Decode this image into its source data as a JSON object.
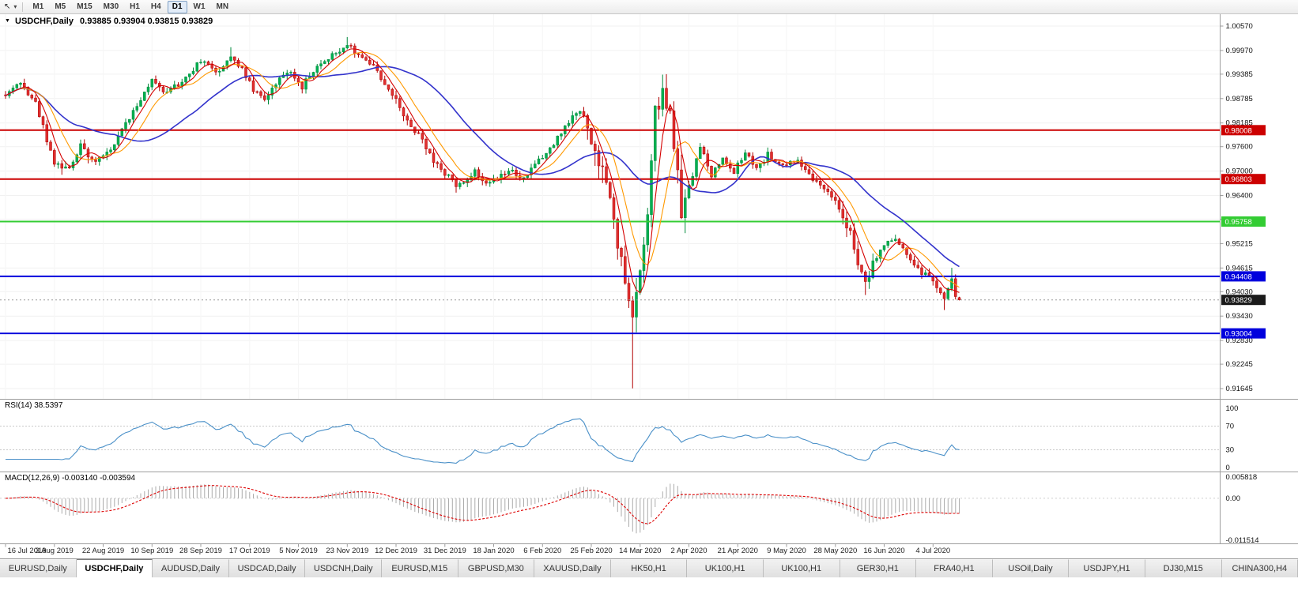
{
  "toolbar": {
    "cursor_icon": "↖",
    "caret_icon": "▾",
    "timeframes": [
      "M1",
      "M5",
      "M15",
      "M30",
      "H1",
      "H4",
      "D1",
      "W1",
      "MN"
    ],
    "active_timeframe": "D1"
  },
  "chart": {
    "marker": "▼",
    "title": "USDCHF,Daily",
    "ohlc_text": "0.93885 0.93904 0.93815 0.93829",
    "rsi_label": "RSI(14) 38.5397",
    "macd_label": "MACD(12,26,9) -0.003140 -0.003594"
  },
  "axes": {
    "price_ticks": [
      "1.00570",
      "0.99970",
      "0.99385",
      "0.98785",
      "0.98185",
      "0.97600",
      "0.97000",
      "0.96400",
      "0.95815",
      "0.95215",
      "0.94615",
      "0.94030",
      "0.93430",
      "0.92830",
      "0.92245",
      "0.91645"
    ],
    "rsi_ticks": [
      "100",
      "70",
      "30",
      "0"
    ],
    "macd_ticks": [
      "0.005818",
      "0.00",
      "-0.011514"
    ],
    "dates": [
      "16 Jul 2019",
      "3 Aug 2019",
      "22 Aug 2019",
      "10 Sep 2019",
      "28 Sep 2019",
      "17 Oct 2019",
      "5 Nov 2019",
      "23 Nov 2019",
      "12 Dec 2019",
      "31 Dec 2019",
      "18 Jan 2020",
      "6 Feb 2020",
      "25 Feb 2020",
      "14 Mar 2020",
      "2 Apr 2020",
      "21 Apr 2020",
      "9 May 2020",
      "28 May 2020",
      "16 Jun 2020",
      "4 Jul 2020"
    ]
  },
  "levels": [
    {
      "value": 0.98008,
      "label": "0.98008",
      "color": "#CC0000"
    },
    {
      "value": 0.96803,
      "label": "0.96803",
      "color": "#CC0000"
    },
    {
      "value": 0.95758,
      "label": "0.95758",
      "color": "#33CC33"
    },
    {
      "value": 0.94408,
      "label": "0.94408",
      "color": "#0000DD"
    },
    {
      "value": 0.93004,
      "label": "0.93004",
      "color": "#0000DD"
    }
  ],
  "current_price": {
    "value": 0.93829,
    "label": "0.93829",
    "color": "#1A1A1A"
  },
  "tabs": {
    "active_index": 1,
    "items": [
      "EURUSD,Daily",
      "USDCHF,Daily",
      "AUDUSD,Daily",
      "USDCAD,Daily",
      "USDCNH,Daily",
      "EURUSD,M15",
      "GBPUSD,M30",
      "XAUUSD,Daily",
      "HK50,H1",
      "UK100,H1",
      "UK100,H1",
      "GER30,H1",
      "FRA40,H1",
      "USOil,Daily",
      "USDJPY,H1",
      "DJ30,M15",
      "CHINA300,H4"
    ]
  },
  "chart_data": {
    "type": "candlestick",
    "symbol": "USDCHF",
    "timeframe": "Daily",
    "last_candle": {
      "open": 0.93885,
      "high": 0.93904,
      "low": 0.93815,
      "close": 0.93829
    },
    "y_range": [
      0.91645,
      1.0057
    ],
    "candle_count": 255,
    "candles_per_label": 13,
    "seed": 1337,
    "base_vol": 0.0013,
    "price_path": [
      [
        0,
        0.989
      ],
      [
        4,
        0.9918
      ],
      [
        8,
        0.9868
      ],
      [
        13,
        0.9725
      ],
      [
        16,
        0.97
      ],
      [
        20,
        0.9762
      ],
      [
        24,
        0.9722
      ],
      [
        28,
        0.975
      ],
      [
        32,
        0.982
      ],
      [
        36,
        0.9875
      ],
      [
        39,
        0.9925
      ],
      [
        43,
        0.9892
      ],
      [
        47,
        0.9922
      ],
      [
        52,
        0.9972
      ],
      [
        56,
        0.9942
      ],
      [
        60,
        0.9982
      ],
      [
        63,
        0.9952
      ],
      [
        66,
        0.9898
      ],
      [
        69,
        0.9875
      ],
      [
        73,
        0.993
      ],
      [
        76,
        0.9945
      ],
      [
        79,
        0.9908
      ],
      [
        83,
        0.9958
      ],
      [
        87,
        0.9988
      ],
      [
        91,
        1.0008
      ],
      [
        95,
        0.998
      ],
      [
        99,
        0.9945
      ],
      [
        102,
        0.9902
      ],
      [
        105,
        0.9856
      ],
      [
        109,
        0.9798
      ],
      [
        113,
        0.9742
      ],
      [
        117,
        0.9692
      ],
      [
        121,
        0.9662
      ],
      [
        125,
        0.9702
      ],
      [
        128,
        0.9672
      ],
      [
        131,
        0.9682
      ],
      [
        134,
        0.9706
      ],
      [
        138,
        0.9678
      ],
      [
        143,
        0.9736
      ],
      [
        147,
        0.9782
      ],
      [
        151,
        0.9838
      ],
      [
        154,
        0.9842
      ],
      [
        156,
        0.9772
      ],
      [
        159,
        0.9698
      ],
      [
        162,
        0.9575
      ],
      [
        165,
        0.9415
      ],
      [
        167,
        0.933
      ],
      [
        169,
        0.9445
      ],
      [
        171,
        0.96
      ],
      [
        173,
        0.984
      ],
      [
        175,
        0.9882
      ],
      [
        177,
        0.983
      ],
      [
        180,
        0.9605
      ],
      [
        182,
        0.966
      ],
      [
        185,
        0.976
      ],
      [
        188,
        0.969
      ],
      [
        191,
        0.9735
      ],
      [
        194,
        0.9698
      ],
      [
        197,
        0.9745
      ],
      [
        200,
        0.9702
      ],
      [
        203,
        0.974
      ],
      [
        207,
        0.9714
      ],
      [
        211,
        0.973
      ],
      [
        214,
        0.9695
      ],
      [
        217,
        0.966
      ],
      [
        220,
        0.9638
      ],
      [
        223,
        0.959
      ],
      [
        225,
        0.9545
      ],
      [
        227,
        0.9468
      ],
      [
        229,
        0.9425
      ],
      [
        231,
        0.9478
      ],
      [
        234,
        0.9518
      ],
      [
        237,
        0.9532
      ],
      [
        240,
        0.949
      ],
      [
        243,
        0.9455
      ],
      [
        246,
        0.944
      ],
      [
        248,
        0.9408
      ],
      [
        250,
        0.9382
      ],
      [
        252,
        0.9438
      ],
      [
        253,
        0.9388
      ],
      [
        254,
        0.93829
      ]
    ],
    "vol_zones": [
      {
        "from": 11,
        "to": 22,
        "vol": 0.0021
      },
      {
        "from": 104,
        "to": 124,
        "vol": 0.0017
      },
      {
        "from": 155,
        "to": 181,
        "vol": 0.0045
      },
      {
        "from": 223,
        "to": 232,
        "vol": 0.0026
      }
    ],
    "forced_points": [
      {
        "i": 60,
        "high": 1.0005
      },
      {
        "i": 91,
        "high": 1.003
      },
      {
        "i": 167,
        "low": 0.9165
      },
      {
        "i": 229,
        "low": 0.9395
      },
      {
        "i": 250,
        "low": 0.9358
      },
      {
        "i": 252,
        "high": 0.9462
      }
    ],
    "indicators": {
      "ma_fast": {
        "period": 5,
        "color": "#D40000"
      },
      "ma_mid": {
        "period": 10,
        "color": "#FF9900"
      },
      "ma_slow": {
        "period": 30,
        "color": "#3333CC"
      },
      "rsi": {
        "period": 14,
        "value": 38.5397,
        "levels": [
          70,
          30
        ],
        "color": "#4A90C8",
        "range": [
          0,
          100
        ]
      },
      "macd": {
        "fast": 12,
        "slow": 26,
        "signal": 9,
        "main": -0.00314,
        "signal_value": -0.003594,
        "range": [
          -0.011514,
          0.005818
        ],
        "hist_color": "#ABABAB",
        "signal_color": "#DD0000"
      }
    },
    "colors": {
      "up": "#00B050",
      "up_edge": "#008A3C",
      "down": "#E03030",
      "down_edge": "#B00000",
      "background": "#FFFFFF",
      "grid": "#F0F0F0"
    }
  }
}
